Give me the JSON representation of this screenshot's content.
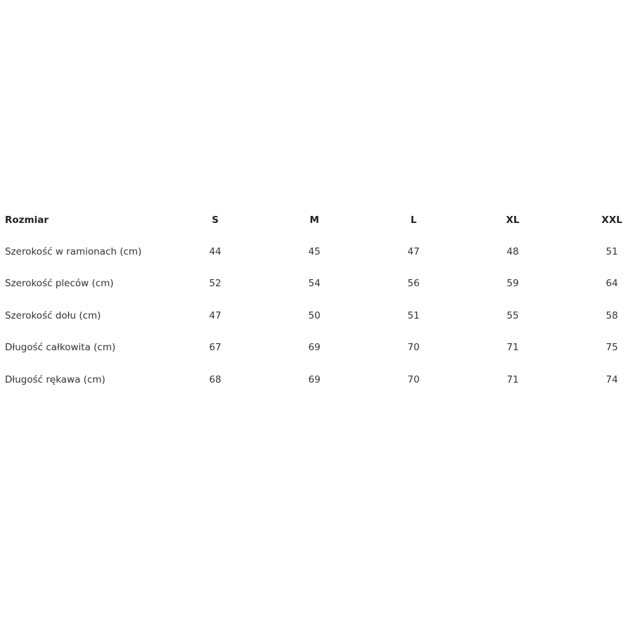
{
  "table": {
    "header": [
      "Rozmiar",
      "S",
      "M",
      "L",
      "XL",
      "XXL"
    ],
    "rows": [
      [
        "Szerokość w ramionach (cm)",
        "44",
        "45",
        "47",
        "48",
        "51"
      ],
      [
        "Szerokość pleców (cm)",
        "52",
        "54",
        "56",
        "59",
        "64"
      ],
      [
        "Szerokość dołu (cm)",
        "47",
        "50",
        "51",
        "55",
        "58"
      ],
      [
        "Długość całkowita (cm)",
        "67",
        "69",
        "70",
        "71",
        "75"
      ],
      [
        "Długość rękawa (cm)",
        "68",
        "69",
        "70",
        "71",
        "74"
      ]
    ]
  }
}
